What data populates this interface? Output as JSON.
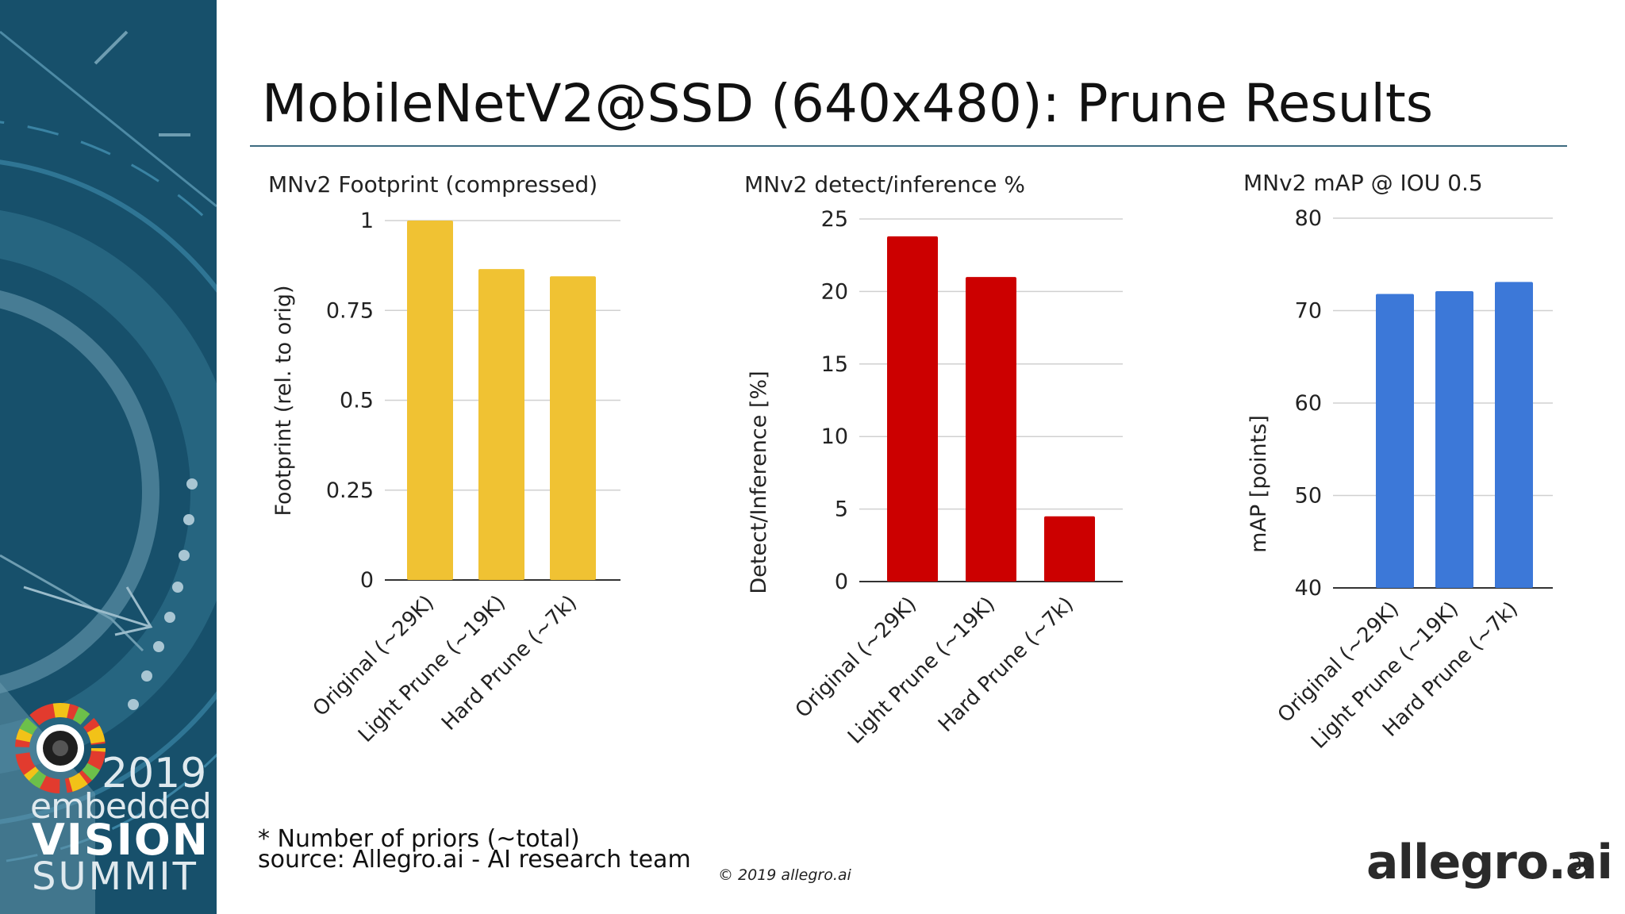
{
  "slide": {
    "title": "MobileNetV2@SSD (640x480): Prune Results",
    "footnotes": [
      "* Number of priors (~total)",
      "source: Allegro.ai - AI research team"
    ],
    "copyright": "© 2019 allegro.ai",
    "company_logo": "allegro.ai",
    "slide_number": "30",
    "event_logo": {
      "year": "2019",
      "line1": "embedded",
      "line2": "VISION",
      "line3": "SUMMIT"
    }
  },
  "chart_data": [
    {
      "type": "bar",
      "title": "MNv2 Footprint (compressed)",
      "ylabel": "Footprint (rel. to orig)",
      "xlabel": "",
      "categories": [
        "Original (~29K)",
        "Light Prune (~19K)",
        "Hard Prune (~7k)"
      ],
      "values": [
        1.0,
        0.865,
        0.845
      ],
      "ylim": [
        0,
        1
      ],
      "yticks": [
        0,
        0.25,
        0.5,
        0.75,
        1
      ],
      "ytick_labels": [
        "0",
        "0.25",
        "0.5",
        "0.75",
        "1"
      ],
      "color": "#f0c233",
      "grid": true
    },
    {
      "type": "bar",
      "title": "MNv2  detect/inference %",
      "ylabel": "Detect/Inference [%]",
      "xlabel": "",
      "categories": [
        "Original (~29K)",
        "Light Prune (~19K)",
        "Hard Prune (~7k)"
      ],
      "values": [
        23.8,
        21.0,
        4.5
      ],
      "ylim": [
        0,
        25
      ],
      "yticks": [
        0,
        5,
        10,
        15,
        20,
        25
      ],
      "ytick_labels": [
        "0",
        "5",
        "10",
        "15",
        "20",
        "25"
      ],
      "color": "#cc0000",
      "grid": true
    },
    {
      "type": "bar",
      "title": "MNv2  mAP @ IOU 0.5",
      "ylabel": "mAP [points]",
      "xlabel": "",
      "categories": [
        "Original (~29K)",
        "Light Prune (~19K)",
        "Hard Prune (~7k)"
      ],
      "values": [
        71.8,
        72.1,
        73.1
      ],
      "ylim": [
        40,
        80
      ],
      "yticks": [
        40,
        50,
        60,
        70,
        80
      ],
      "ytick_labels": [
        "40",
        "50",
        "60",
        "70",
        "80"
      ],
      "color": "#3c78d8",
      "grid": true
    }
  ]
}
